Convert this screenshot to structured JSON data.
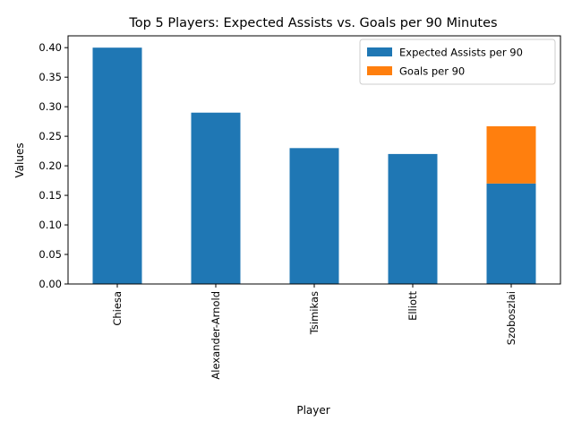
{
  "chart_data": {
    "type": "bar",
    "stacked": true,
    "title": "Top 5 Players: Expected Assists vs. Goals per 90 Minutes",
    "xlabel": "Player",
    "ylabel": "Values",
    "categories": [
      "Chiesa",
      "Alexander-Arnold",
      "Tsimikas",
      "Elliott",
      "Szoboszlai"
    ],
    "series": [
      {
        "name": "Expected Assists per 90",
        "values": [
          0.4,
          0.29,
          0.23,
          0.22,
          0.17
        ],
        "color": "#1f77b4"
      },
      {
        "name": "Goals per 90",
        "values": [
          0.0,
          0.0,
          0.0,
          0.0,
          0.097
        ],
        "color": "#ff7f0e"
      }
    ],
    "ylim": [
      0,
      0.42
    ],
    "yticks": [
      "0.00",
      "0.05",
      "0.10",
      "0.15",
      "0.20",
      "0.25",
      "0.30",
      "0.35",
      "0.40"
    ],
    "legend": "top-right",
    "grid": false
  }
}
